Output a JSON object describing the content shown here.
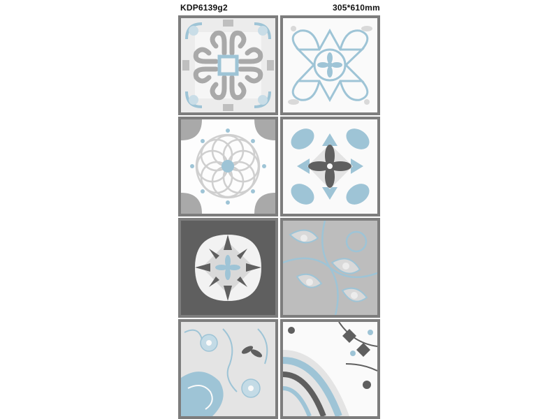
{
  "header": {
    "product_code": "KDP6139g2",
    "dimensions": "305*610mm"
  },
  "palette": {
    "blue": "#9ec4d6",
    "light_gray": "#d9d9d9",
    "mid_gray": "#a9a9a9",
    "dark_gray": "#5f5f5f",
    "frame": "#7d7d7d"
  },
  "tiles": [
    {
      "pattern": "scroll-quatrefoil"
    },
    {
      "pattern": "star-loop"
    },
    {
      "pattern": "circle-rosette"
    },
    {
      "pattern": "petal-cross"
    },
    {
      "pattern": "dark-corner-star"
    },
    {
      "pattern": "floral-gray"
    },
    {
      "pattern": "floral-blue"
    },
    {
      "pattern": "damask-corner"
    }
  ]
}
